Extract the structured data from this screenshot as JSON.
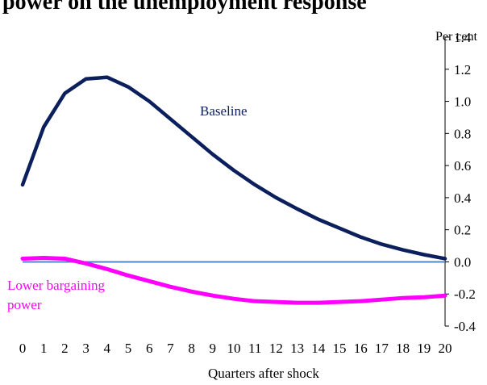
{
  "chart_data": {
    "type": "line",
    "title": "power on the unemployment response",
    "unit_label": "Per cent",
    "xlabel": "Quarters after shock",
    "ylabel": "",
    "x": [
      0,
      1,
      2,
      3,
      4,
      5,
      6,
      7,
      8,
      9,
      10,
      11,
      12,
      13,
      14,
      15,
      16,
      17,
      18,
      19,
      20
    ],
    "xlim": [
      0,
      20
    ],
    "ylim": [
      -0.4,
      1.4
    ],
    "yticks": [
      1.4,
      1.2,
      1.0,
      0.8,
      0.6,
      0.4,
      0.2,
      0.0,
      -0.2,
      -0.4
    ],
    "ytick_labels": [
      "1.4",
      "1.2",
      "1.0",
      "0.8",
      "0.6",
      "0.4",
      "0.2",
      "0.0",
      "-0.2",
      "-0.4"
    ],
    "xtick_labels": [
      "0",
      "1",
      "2",
      "3",
      "4",
      "5",
      "6",
      "7",
      "8",
      "9",
      "10",
      "11",
      "12",
      "13",
      "14",
      "15",
      "16",
      "17",
      "18",
      "19",
      "20"
    ],
    "grid": false,
    "zero_line": true,
    "series": [
      {
        "name": "Baseline",
        "color": "#0b1f5c",
        "values": [
          0.48,
          0.84,
          1.05,
          1.14,
          1.15,
          1.09,
          1.0,
          0.89,
          0.78,
          0.67,
          0.57,
          0.48,
          0.4,
          0.33,
          0.265,
          0.21,
          0.155,
          0.11,
          0.075,
          0.045,
          0.02
        ]
      },
      {
        "name": "Lower bargaining power",
        "color": "#ff00ff",
        "values": [
          0.02,
          0.025,
          0.02,
          -0.01,
          -0.045,
          -0.085,
          -0.12,
          -0.155,
          -0.185,
          -0.21,
          -0.23,
          -0.245,
          -0.25,
          -0.255,
          -0.255,
          -0.25,
          -0.245,
          -0.235,
          -0.225,
          -0.22,
          -0.21
        ]
      }
    ],
    "colors": {
      "axis": "#000000",
      "zero_line": "#4f86c6",
      "background": "#ffffff"
    }
  }
}
